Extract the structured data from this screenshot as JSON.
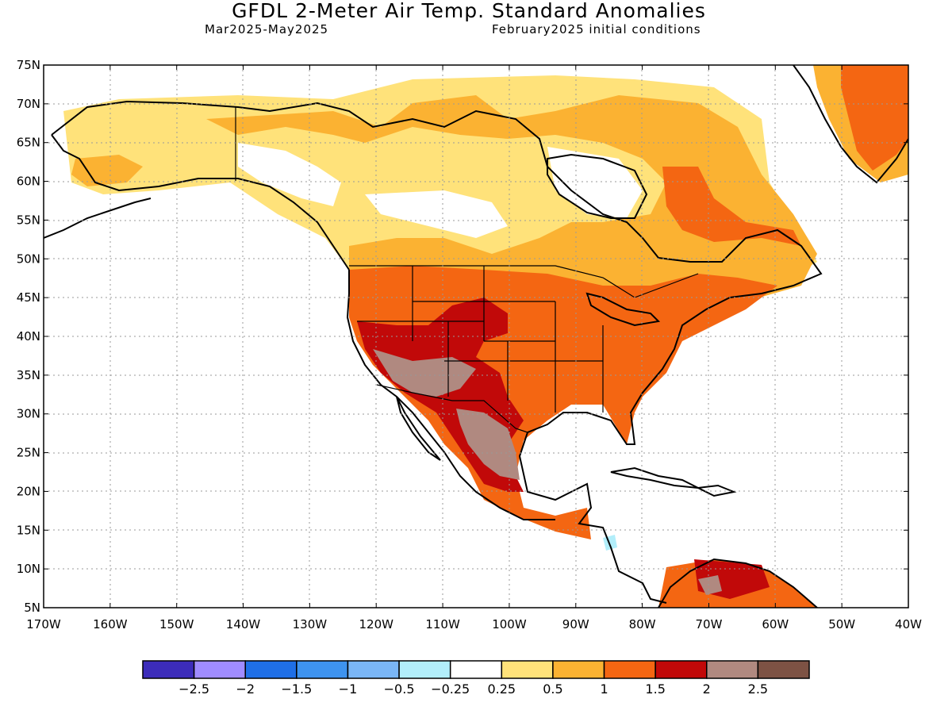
{
  "header": {
    "title": "GFDL 2-Meter Air Temp. Standard Anomalies",
    "period": "Mar2025-May2025",
    "init": "February2025 initial conditions"
  },
  "map": {
    "lat_labels": [
      "75N",
      "70N",
      "65N",
      "60N",
      "55N",
      "50N",
      "45N",
      "40N",
      "35N",
      "30N",
      "25N",
      "20N",
      "15N",
      "10N",
      "5N"
    ],
    "lon_labels": [
      "170W",
      "160W",
      "150W",
      "140W",
      "130W",
      "120W",
      "110W",
      "100W",
      "90W",
      "80W",
      "70W",
      "60W",
      "50W",
      "40W"
    ]
  },
  "colorbar": {
    "colors": [
      "#3c2cba",
      "#a08cff",
      "#1f6fe6",
      "#3e93ef",
      "#7ab6f6",
      "#b2eefa",
      "#ffffff",
      "#ffe27a",
      "#fbb232",
      "#f46612",
      "#c10909",
      "#b08980",
      "#7d5244"
    ],
    "labels": [
      "-2.5",
      "-2",
      "-1.5",
      "-1",
      "-0.5",
      "-0.25",
      "0.25",
      "0.5",
      "1",
      "1.5",
      "2",
      "2.5"
    ]
  }
}
